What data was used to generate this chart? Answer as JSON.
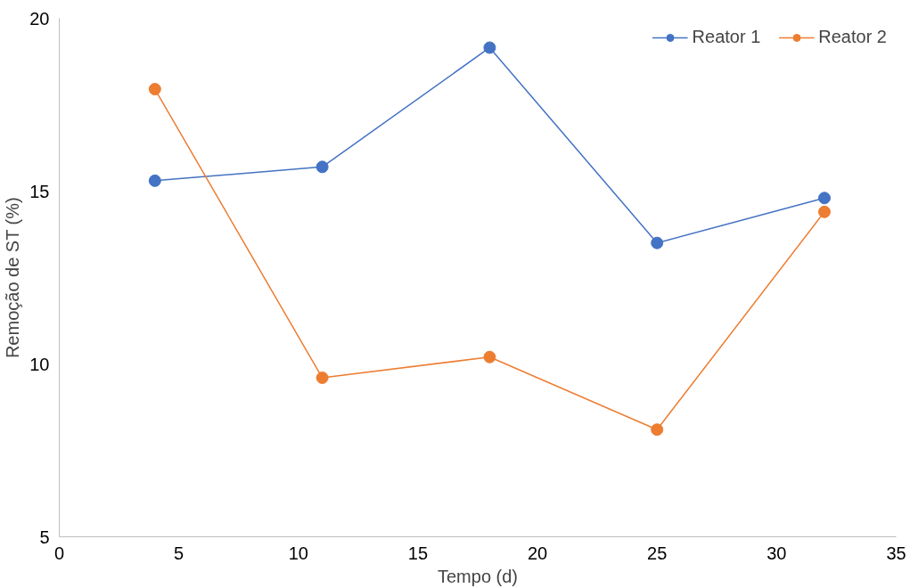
{
  "chart_data": {
    "type": "line",
    "xlabel": "Tempo (d)",
    "ylabel": "Remoção de ST (%)",
    "x": [
      4,
      11,
      18,
      25,
      32
    ],
    "series": [
      {
        "name": "Reator 1",
        "color": "#4472c4",
        "values": [
          15.3,
          15.7,
          19.15,
          13.5,
          14.8
        ]
      },
      {
        "name": "Reator 2",
        "color": "#ed7d31",
        "values": [
          17.95,
          9.6,
          10.2,
          8.1,
          14.4
        ]
      }
    ],
    "xlim": [
      0,
      35
    ],
    "xticks": [
      0,
      5,
      10,
      15,
      20,
      25,
      30,
      35
    ],
    "ylim": [
      5,
      20
    ],
    "yticks": [
      5,
      10,
      15,
      20
    ],
    "grid": false,
    "legend": "top right",
    "marker": "circle",
    "line_style": "solid"
  }
}
